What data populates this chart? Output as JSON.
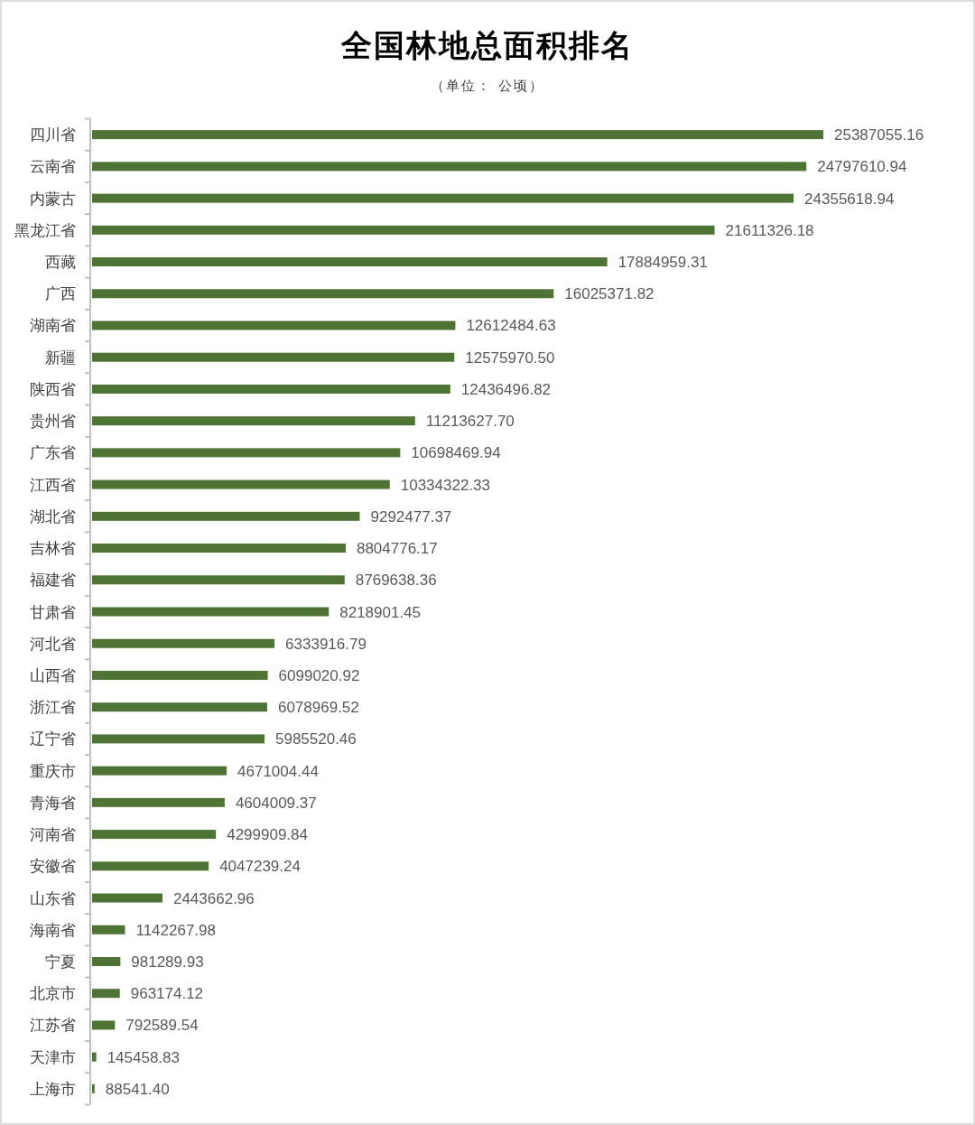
{
  "chart_data": {
    "type": "bar",
    "orientation": "horizontal",
    "title": "全国林地总面积排名",
    "subtitle": "（单位： 公顷）",
    "categories": [
      "四川省",
      "云南省",
      "内蒙古",
      "黑龙江省",
      "西藏",
      "广西",
      "湖南省",
      "新疆",
      "陕西省",
      "贵州省",
      "广东省",
      "江西省",
      "湖北省",
      "吉林省",
      "福建省",
      "甘肃省",
      "河北省",
      "山西省",
      "浙江省",
      "辽宁省",
      "重庆市",
      "青海省",
      "河南省",
      "安徽省",
      "山东省",
      "海南省",
      "宁夏",
      "北京市",
      "江苏省",
      "天津市",
      "上海市"
    ],
    "values": [
      25387055.16,
      24797610.94,
      24355618.94,
      21611326.18,
      17884959.31,
      16025371.82,
      12612484.63,
      12575970.5,
      12436496.82,
      11213627.7,
      10698469.94,
      10334322.33,
      9292477.37,
      8804776.17,
      8769638.36,
      8218901.45,
      6333916.79,
      6099020.92,
      6078969.52,
      5985520.46,
      4671004.44,
      4604009.37,
      4299909.84,
      4047239.24,
      2443662.96,
      1142267.98,
      981289.93,
      963174.12,
      792589.54,
      145458.83,
      88541.4
    ],
    "value_labels": [
      "25387055.16",
      "24797610.94",
      "24355618.94",
      "21611326.18",
      "17884959.31",
      "16025371.82",
      "12612484.63",
      "12575970.50",
      "12436496.82",
      "11213627.70",
      "10698469.94",
      "10334322.33",
      "9292477.37",
      "8804776.17",
      "8769638.36",
      "8218901.45",
      "6333916.79",
      "6099020.92",
      "6078969.52",
      "5985520.46",
      "4671004.44",
      "4604009.37",
      "4299909.84",
      "4047239.24",
      "2443662.96",
      "1142267.98",
      "981289.93",
      "963174.12",
      "792589.54",
      "145458.83",
      "88541.40"
    ],
    "color": "#4f7335"
  }
}
